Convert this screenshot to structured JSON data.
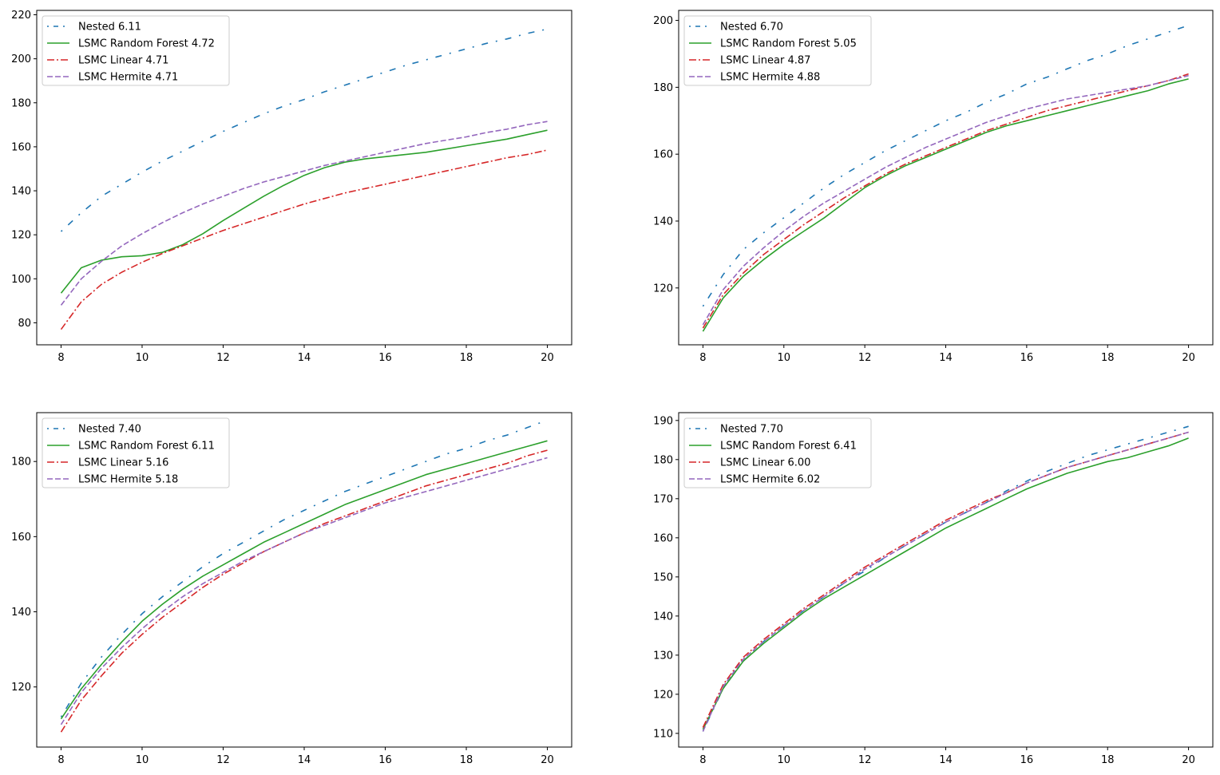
{
  "chart_data": [
    {
      "type": "line",
      "title": "",
      "xlabel": "",
      "ylabel": "",
      "xlim": [
        7.4,
        20.6
      ],
      "ylim": [
        70,
        222
      ],
      "x_ticks": [
        8,
        10,
        12,
        14,
        16,
        18,
        20
      ],
      "y_ticks": [
        80,
        100,
        120,
        140,
        160,
        180,
        200,
        220
      ],
      "legend_position": "top-left",
      "x": [
        8,
        8.5,
        9,
        9.5,
        10,
        10.5,
        11,
        11.5,
        12,
        12.5,
        13,
        13.5,
        14,
        14.5,
        15,
        15.5,
        16,
        16.5,
        17,
        17.5,
        18,
        18.5,
        19,
        19.5,
        20
      ],
      "series": [
        {
          "name": "Nested",
          "score": "6.11",
          "label": "Nested 6.11",
          "color": "#1f77b4",
          "style": "dotdash",
          "values": [
            121.5,
            130,
            137.5,
            143,
            148.5,
            153.5,
            158,
            162.5,
            167,
            171,
            175,
            178.5,
            181.5,
            185,
            188,
            191,
            194,
            197,
            199.5,
            202,
            204.5,
            207,
            209,
            211.5,
            213.5
          ]
        },
        {
          "name": "LSMC Random Forest",
          "score": "4.72",
          "label": "LSMC Random Forest 4.72",
          "color": "#2ca02c",
          "style": "solid",
          "values": [
            93.5,
            105,
            108.5,
            110,
            110.5,
            112,
            115.5,
            120.5,
            126.5,
            132,
            137.5,
            142.5,
            147,
            150.5,
            153,
            154.5,
            155.5,
            156.5,
            157.5,
            159,
            160.5,
            162,
            163.5,
            165.5,
            167.5
          ]
        },
        {
          "name": "LSMC Linear",
          "score": "4.71",
          "label": "LSMC Linear 4.71",
          "color": "#d62728",
          "style": "dashdot",
          "values": [
            77,
            89.5,
            97.5,
            103,
            107.5,
            111.5,
            115,
            118.5,
            122,
            125,
            128,
            131,
            134,
            136.5,
            139,
            141,
            143,
            145,
            147,
            149,
            151,
            153,
            155,
            156.5,
            158.5
          ]
        },
        {
          "name": "LSMC Hermite",
          "score": "4.71",
          "label": "LSMC Hermite 4.71",
          "color": "#9467bd",
          "style": "dashed",
          "values": [
            88,
            100,
            108,
            115,
            120.5,
            125.5,
            130,
            134,
            137.5,
            141,
            144,
            146.5,
            149,
            151.5,
            153.5,
            155.5,
            157.5,
            159.5,
            161.5,
            163,
            164.5,
            166.5,
            168,
            170,
            171.5
          ]
        }
      ]
    },
    {
      "type": "line",
      "title": "",
      "xlabel": "",
      "ylabel": "",
      "xlim": [
        7.4,
        20.6
      ],
      "ylim": [
        103,
        203
      ],
      "x_ticks": [
        8,
        10,
        12,
        14,
        16,
        18,
        20
      ],
      "y_ticks": [
        120,
        140,
        160,
        180,
        200
      ],
      "legend_position": "top-left",
      "x": [
        8,
        8.5,
        9,
        9.5,
        10,
        10.5,
        11,
        11.5,
        12,
        12.5,
        13,
        13.5,
        14,
        14.5,
        15,
        15.5,
        16,
        16.5,
        17,
        17.5,
        18,
        18.5,
        19,
        19.5,
        20
      ],
      "series": [
        {
          "name": "Nested",
          "score": "6.70",
          "label": "Nested 6.70",
          "color": "#1f77b4",
          "style": "dotdash",
          "values": [
            114.5,
            124,
            131.5,
            136.5,
            141,
            145.5,
            150,
            154,
            157.5,
            161,
            164,
            167,
            170,
            172.5,
            175.5,
            178,
            181,
            183,
            185.5,
            188,
            190,
            192.5,
            194.5,
            196.5,
            198.5
          ]
        },
        {
          "name": "LSMC Random Forest",
          "score": "5.05",
          "label": "LSMC Random Forest 5.05",
          "color": "#2ca02c",
          "style": "solid",
          "values": [
            107,
            117,
            123.5,
            128.5,
            133,
            137,
            141,
            145.5,
            150,
            153.5,
            156.5,
            159,
            161.5,
            164,
            166.5,
            168.5,
            170,
            171.5,
            173,
            174.5,
            176,
            177.5,
            179,
            181,
            182.5
          ]
        },
        {
          "name": "LSMC Linear",
          "score": "4.87",
          "label": "LSMC Linear 4.87",
          "color": "#d62728",
          "style": "dashdot",
          "values": [
            108,
            118,
            124.5,
            130,
            134.5,
            139,
            143,
            147,
            150.5,
            154,
            157,
            159.5,
            162,
            164.5,
            167,
            169,
            171,
            173,
            174.5,
            176,
            177.5,
            179,
            180.5,
            182,
            184
          ]
        },
        {
          "name": "LSMC Hermite",
          "score": "4.88",
          "label": "LSMC Hermite 4.88",
          "color": "#9467bd",
          "style": "dashed",
          "values": [
            109,
            119.5,
            126.5,
            132,
            137,
            141.5,
            145.5,
            149,
            152.5,
            156,
            159,
            162,
            164.5,
            167,
            169.5,
            171.5,
            173.5,
            175,
            176.5,
            177.5,
            178.5,
            179.5,
            180.5,
            182,
            183.5
          ]
        }
      ]
    },
    {
      "type": "line",
      "title": "",
      "xlabel": "",
      "ylabel": "",
      "xlim": [
        7.4,
        20.6
      ],
      "ylim": [
        104,
        193
      ],
      "x_ticks": [
        8,
        10,
        12,
        14,
        16,
        18,
        20
      ],
      "y_ticks": [
        120,
        140,
        160,
        180
      ],
      "legend_position": "top-left",
      "x": [
        8,
        8.5,
        9,
        9.5,
        10,
        10.5,
        11,
        11.5,
        12,
        12.5,
        13,
        13.5,
        14,
        14.5,
        15,
        15.5,
        16,
        16.5,
        17,
        17.5,
        18,
        18.5,
        19,
        19.5,
        20
      ],
      "series": [
        {
          "name": "Nested",
          "score": "7.40",
          "label": "Nested 7.40",
          "color": "#1f77b4",
          "style": "dotdash",
          "values": [
            112,
            121,
            128,
            134,
            139.5,
            144,
            148,
            152,
            155.5,
            158.5,
            161.5,
            164.5,
            167,
            169.5,
            172,
            174,
            176,
            178,
            180,
            182,
            183.5,
            185.5,
            187,
            189,
            191
          ]
        },
        {
          "name": "LSMC Random Forest",
          "score": "6.11",
          "label": "LSMC Random Forest 6.11",
          "color": "#2ca02c",
          "style": "solid",
          "values": [
            111.5,
            119.5,
            126,
            132,
            137.5,
            142,
            146,
            149.5,
            152.5,
            155.5,
            158.5,
            161,
            163.5,
            166,
            168.5,
            170.5,
            172.5,
            174.5,
            176.5,
            178,
            179.5,
            181,
            182.5,
            184,
            185.5
          ]
        },
        {
          "name": "LSMC Linear",
          "score": "5.16",
          "label": "LSMC Linear 5.16",
          "color": "#d62728",
          "style": "dashdot",
          "values": [
            108,
            116.5,
            123,
            129,
            134,
            138.5,
            142.5,
            146.5,
            150,
            153,
            156,
            158.5,
            161,
            163.5,
            165.5,
            167.5,
            169.5,
            171.5,
            173.5,
            175,
            176.5,
            178,
            179.5,
            181.5,
            183
          ]
        },
        {
          "name": "LSMC Hermite",
          "score": "5.18",
          "label": "LSMC Hermite 5.18",
          "color": "#9467bd",
          "style": "dashed",
          "values": [
            110,
            118.5,
            125,
            130.5,
            135.5,
            140,
            144,
            147.5,
            150.5,
            153.5,
            156,
            158.5,
            161,
            163,
            165,
            167,
            169,
            170.5,
            172,
            173.5,
            175,
            176.5,
            178,
            179.5,
            181
          ]
        }
      ]
    },
    {
      "type": "line",
      "title": "",
      "xlabel": "",
      "ylabel": "",
      "xlim": [
        7.4,
        20.6
      ],
      "ylim": [
        106.5,
        192
      ],
      "x_ticks": [
        8,
        10,
        12,
        14,
        16,
        18,
        20
      ],
      "y_ticks": [
        110,
        120,
        130,
        140,
        150,
        160,
        170,
        180,
        190
      ],
      "legend_position": "top-left",
      "x": [
        8,
        8.5,
        9,
        9.5,
        10,
        10.5,
        11,
        11.5,
        12,
        12.5,
        13,
        13.5,
        14,
        14.5,
        15,
        15.5,
        16,
        16.5,
        17,
        17.5,
        18,
        18.5,
        19,
        19.5,
        20
      ],
      "series": [
        {
          "name": "Nested",
          "score": "7.70",
          "label": "Nested 7.70",
          "color": "#1f77b4",
          "style": "dotdash",
          "values": [
            110.5,
            121.5,
            128.5,
            133.5,
            137.5,
            141.5,
            145,
            148.5,
            151.5,
            155,
            158,
            161,
            164,
            166.5,
            169,
            172,
            174.5,
            177,
            179,
            181,
            182.5,
            184,
            185.5,
            187,
            188.5
          ]
        },
        {
          "name": "LSMC Random Forest",
          "score": "6.41",
          "label": "LSMC Random Forest 6.41",
          "color": "#2ca02c",
          "style": "solid",
          "values": [
            111,
            121.5,
            128.5,
            133,
            137,
            141,
            144.5,
            147.5,
            150.5,
            153.5,
            156.5,
            159.5,
            162.5,
            165,
            167.5,
            170,
            172.5,
            174.5,
            176.5,
            178,
            179.5,
            180.5,
            182,
            183.5,
            185.5
          ]
        },
        {
          "name": "LSMC Linear",
          "score": "6.00",
          "label": "LSMC Linear 6.00",
          "color": "#d62728",
          "style": "dashdot",
          "values": [
            111.5,
            122.5,
            129.5,
            134,
            138,
            142,
            145.5,
            149,
            152.5,
            155.5,
            158.5,
            161.5,
            164.5,
            167,
            169.5,
            171.5,
            174,
            176,
            178,
            179.5,
            181,
            182.5,
            184,
            185.5,
            187
          ]
        },
        {
          "name": "LSMC Hermite",
          "score": "6.02",
          "label": "LSMC Hermite 6.02",
          "color": "#9467bd",
          "style": "dashed",
          "values": [
            110.5,
            122,
            129,
            133.5,
            137.5,
            141.5,
            145,
            148.5,
            152,
            155,
            158,
            161,
            164,
            166.5,
            169,
            171.5,
            174,
            176,
            178,
            179.5,
            181,
            182.5,
            184,
            185.5,
            187
          ]
        }
      ]
    }
  ]
}
